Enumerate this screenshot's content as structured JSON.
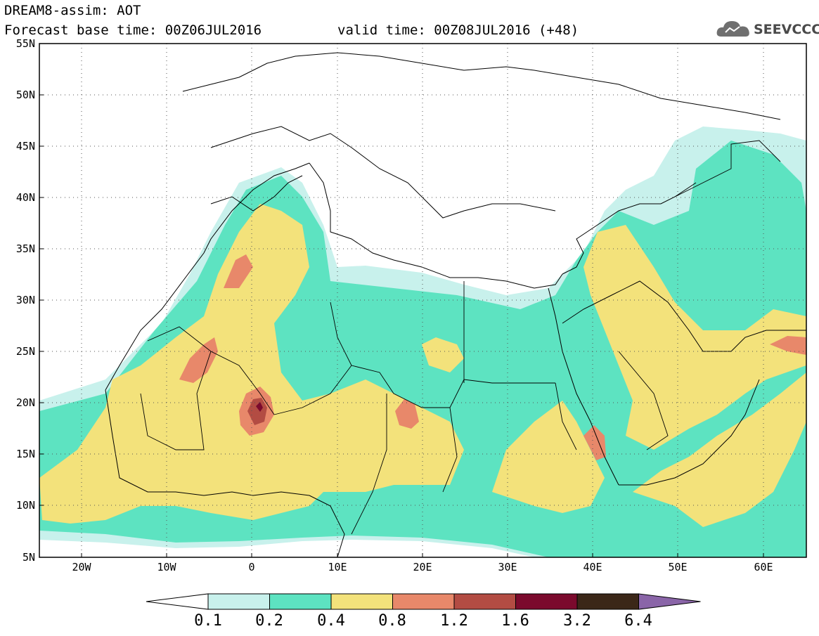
{
  "header": {
    "title_line1": "DREAM8-assim: AOT",
    "title_line2_left": "Forecast base time: 00Z06JUL2016",
    "title_line2_right": "valid time: 00Z08JUL2016 (+48)",
    "logo_text": "SEEVCCC",
    "logo_icon": "cloud-icon"
  },
  "map": {
    "lat_labels": [
      "55N",
      "50N",
      "45N",
      "40N",
      "35N",
      "30N",
      "25N",
      "20N",
      "15N",
      "10N",
      "5N"
    ],
    "lon_labels": [
      "20W",
      "10W",
      "0",
      "10E",
      "20E",
      "30E",
      "40E",
      "50E",
      "60E"
    ],
    "lon_range": [
      -25,
      65
    ],
    "lat_range": [
      5,
      55
    ]
  },
  "colorbar": {
    "colors": [
      "#ffffff",
      "#c8f1ec",
      "#5de3c1",
      "#f3e27b",
      "#e8886a",
      "#b34c43",
      "#7b0a2d",
      "#3b2718",
      "#8a65a8"
    ],
    "labels": [
      "0.1",
      "0.2",
      "0.4",
      "0.8",
      "1.2",
      "1.6",
      "3.2",
      "6.4"
    ]
  }
}
